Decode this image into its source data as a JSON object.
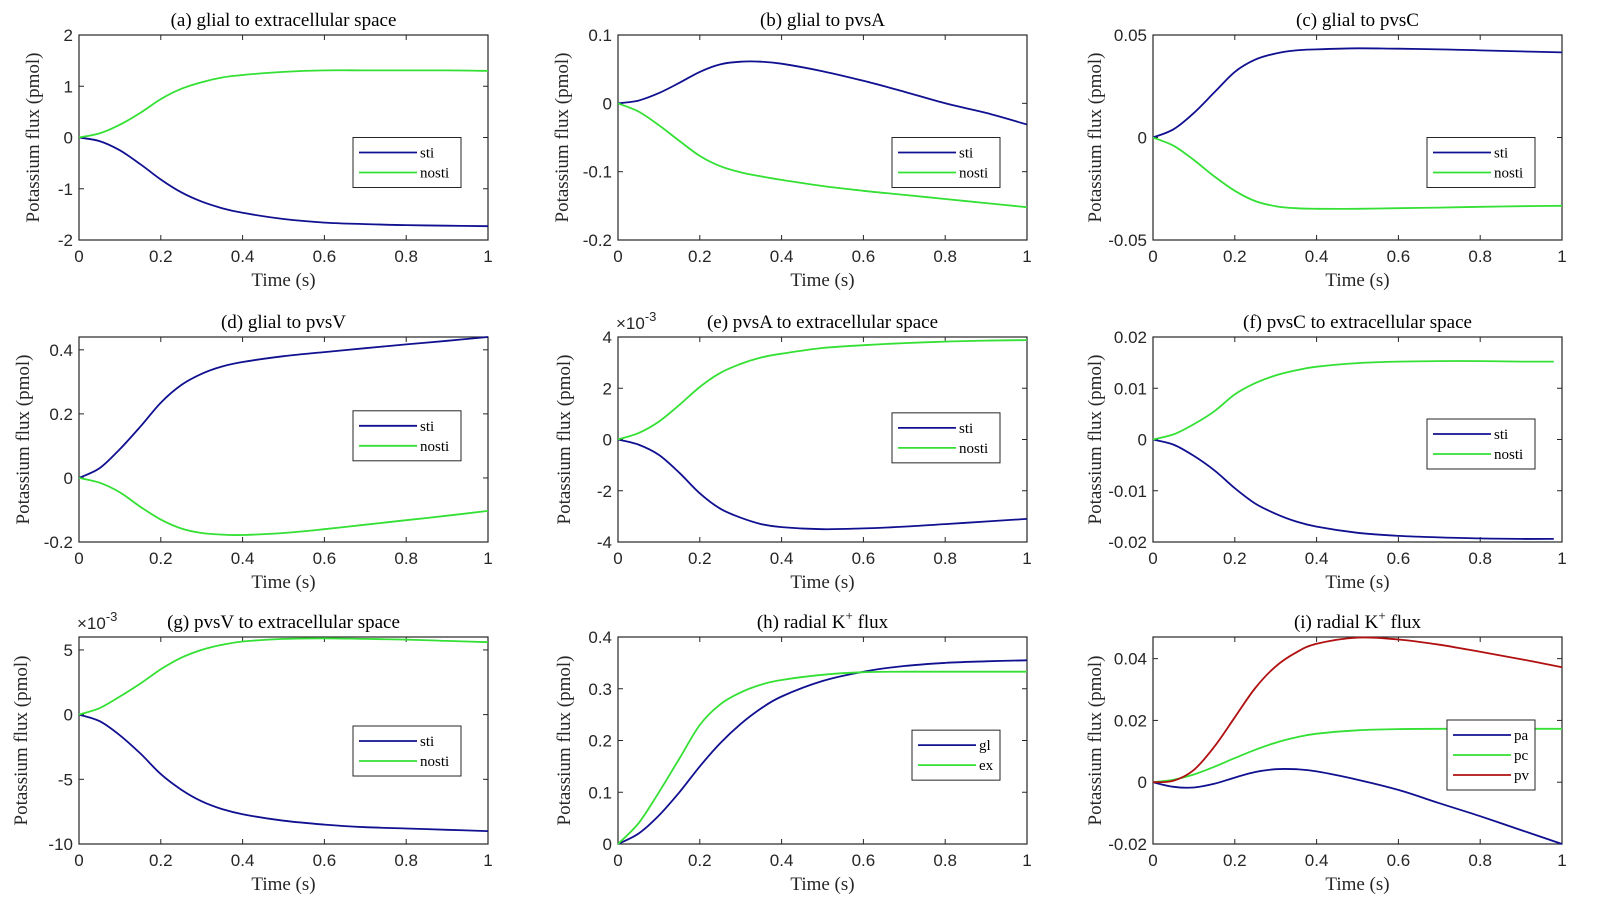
{
  "figure": {
    "colors": {
      "blue": "#101090",
      "green": "#33e033",
      "red": "#b01010",
      "axis": "#262626"
    }
  },
  "chart_data": [
    {
      "id": "a",
      "type": "line",
      "title": "(a) glial to extracellular space",
      "xlabel": "Time (s)",
      "ylabel": "Potassium flux (pmol)",
      "xlim": [
        0,
        1
      ],
      "ylim": [
        -2,
        2
      ],
      "xticks": [
        0,
        0.2,
        0.4,
        0.6,
        0.8,
        1
      ],
      "xtick_labels": [
        "0",
        "0.2",
        "0.4",
        "0.6",
        "0.8",
        "1"
      ],
      "yticks": [
        -2,
        -1,
        0,
        1,
        2
      ],
      "ytick_labels": [
        "-2",
        "-1",
        "0",
        "1",
        "2"
      ],
      "exponent_label": "",
      "legend": {
        "position": "center-right"
      },
      "x": [
        0,
        0.05,
        0.1,
        0.15,
        0.2,
        0.25,
        0.3,
        0.35,
        0.4,
        0.5,
        0.6,
        0.7,
        0.8,
        0.9,
        1.0
      ],
      "series": [
        {
          "name": "sti",
          "color": "blue",
          "values": [
            0,
            -0.07,
            -0.25,
            -0.52,
            -0.82,
            -1.07,
            -1.25,
            -1.38,
            -1.47,
            -1.59,
            -1.66,
            -1.69,
            -1.71,
            -1.72,
            -1.73
          ]
        },
        {
          "name": "nosti",
          "color": "green",
          "values": [
            0,
            0.08,
            0.25,
            0.48,
            0.75,
            0.95,
            1.08,
            1.17,
            1.22,
            1.28,
            1.31,
            1.31,
            1.31,
            1.31,
            1.3
          ]
        }
      ]
    },
    {
      "id": "b",
      "type": "line",
      "title": "(b) glial to pvsA",
      "xlabel": "Time (s)",
      "ylabel": "Potassium flux (pmol)",
      "xlim": [
        0,
        1
      ],
      "ylim": [
        -0.2,
        0.1
      ],
      "xticks": [
        0,
        0.2,
        0.4,
        0.6,
        0.8,
        1
      ],
      "xtick_labels": [
        "0",
        "0.2",
        "0.4",
        "0.6",
        "0.8",
        "1"
      ],
      "yticks": [
        -0.2,
        -0.1,
        0,
        0.1
      ],
      "ytick_labels": [
        "-0.2",
        "-0.1",
        "0",
        "0.1"
      ],
      "exponent_label": "",
      "legend": {
        "position": "center-right"
      },
      "x": [
        0,
        0.05,
        0.1,
        0.15,
        0.2,
        0.25,
        0.3,
        0.35,
        0.4,
        0.5,
        0.6,
        0.7,
        0.8,
        0.9,
        1.0
      ],
      "series": [
        {
          "name": "sti",
          "color": "blue",
          "values": [
            0,
            0.004,
            0.015,
            0.03,
            0.046,
            0.057,
            0.061,
            0.061,
            0.058,
            0.047,
            0.033,
            0.017,
            0.0,
            -0.014,
            -0.031
          ]
        },
        {
          "name": "nosti",
          "color": "green",
          "values": [
            0,
            -0.012,
            -0.032,
            -0.055,
            -0.077,
            -0.092,
            -0.101,
            -0.107,
            -0.112,
            -0.121,
            -0.128,
            -0.134,
            -0.14,
            -0.146,
            -0.152
          ]
        }
      ]
    },
    {
      "id": "c",
      "type": "line",
      "title": "(c) glial to pvsC",
      "xlabel": "Time (s)",
      "ylabel": "Potassium flux (pmol)",
      "xlim": [
        0,
        1
      ],
      "ylim": [
        -0.05,
        0.05
      ],
      "xticks": [
        0,
        0.2,
        0.4,
        0.6,
        0.8,
        1
      ],
      "xtick_labels": [
        "0",
        "0.2",
        "0.4",
        "0.6",
        "0.8",
        "1"
      ],
      "yticks": [
        -0.05,
        0,
        0.05
      ],
      "ytick_labels": [
        "-0.05",
        "0",
        "0.05"
      ],
      "exponent_label": "",
      "legend": {
        "position": "center-right"
      },
      "x": [
        0,
        0.05,
        0.1,
        0.15,
        0.2,
        0.25,
        0.3,
        0.35,
        0.4,
        0.5,
        0.6,
        0.7,
        0.8,
        0.9,
        1.0
      ],
      "series": [
        {
          "name": "sti",
          "color": "blue",
          "values": [
            0,
            0.004,
            0.012,
            0.022,
            0.032,
            0.038,
            0.041,
            0.0425,
            0.043,
            0.0435,
            0.0433,
            0.043,
            0.0425,
            0.042,
            0.0415
          ]
        },
        {
          "name": "nosti",
          "color": "green",
          "values": [
            0,
            -0.004,
            -0.011,
            -0.019,
            -0.026,
            -0.031,
            -0.0335,
            -0.0345,
            -0.0348,
            -0.0348,
            -0.0345,
            -0.0342,
            -0.0338,
            -0.0335,
            -0.0333
          ]
        }
      ]
    },
    {
      "id": "d",
      "type": "line",
      "title": "(d) glial to pvsV",
      "xlabel": "Time (s)",
      "ylabel": "Potassium flux (pmol)",
      "xlim": [
        0,
        1
      ],
      "ylim": [
        -0.2,
        0.44
      ],
      "xticks": [
        0,
        0.2,
        0.4,
        0.6,
        0.8,
        1
      ],
      "xtick_labels": [
        "0",
        "0.2",
        "0.4",
        "0.6",
        "0.8",
        "1"
      ],
      "yticks": [
        -0.2,
        0,
        0.2,
        0.4
      ],
      "ytick_labels": [
        "-0.2",
        "0",
        "0.2",
        "0.4"
      ],
      "exponent_label": "",
      "legend": {
        "position": "center-right"
      },
      "x": [
        0,
        0.05,
        0.1,
        0.15,
        0.2,
        0.25,
        0.3,
        0.35,
        0.4,
        0.5,
        0.6,
        0.7,
        0.8,
        0.9,
        1.0
      ],
      "series": [
        {
          "name": "sti",
          "color": "blue",
          "values": [
            0,
            0.03,
            0.09,
            0.16,
            0.235,
            0.29,
            0.325,
            0.348,
            0.362,
            0.38,
            0.393,
            0.405,
            0.417,
            0.428,
            0.44
          ]
        },
        {
          "name": "nosti",
          "color": "green",
          "values": [
            0,
            -0.015,
            -0.045,
            -0.09,
            -0.13,
            -0.158,
            -0.172,
            -0.177,
            -0.178,
            -0.172,
            -0.16,
            -0.146,
            -0.132,
            -0.118,
            -0.103
          ]
        }
      ]
    },
    {
      "id": "e",
      "type": "line",
      "title": "(e) pvsA to extracellular space",
      "xlabel": "Time (s)",
      "ylabel": "Potassium flux (pmol)",
      "xlim": [
        0,
        1
      ],
      "ylim": [
        -4,
        4
      ],
      "xticks": [
        0,
        0.2,
        0.4,
        0.6,
        0.8,
        1
      ],
      "xtick_labels": [
        "0",
        "0.2",
        "0.4",
        "0.6",
        "0.8",
        "1"
      ],
      "yticks": [
        -4,
        -2,
        0,
        2,
        4
      ],
      "ytick_labels": [
        "-4",
        "-2",
        "0",
        "2",
        "4"
      ],
      "exponent_label": "×10",
      "exponent_power": "-3",
      "legend": {
        "position": "center-right"
      },
      "x": [
        0,
        0.05,
        0.1,
        0.15,
        0.2,
        0.25,
        0.3,
        0.35,
        0.4,
        0.5,
        0.6,
        0.7,
        0.8,
        0.9,
        1.0
      ],
      "series": [
        {
          "name": "sti",
          "color": "blue",
          "values": [
            0,
            -0.2,
            -0.6,
            -1.3,
            -2.1,
            -2.7,
            -3.05,
            -3.3,
            -3.42,
            -3.5,
            -3.47,
            -3.4,
            -3.3,
            -3.2,
            -3.1
          ]
        },
        {
          "name": "nosti",
          "color": "green",
          "values": [
            0,
            0.25,
            0.7,
            1.35,
            2.05,
            2.6,
            2.95,
            3.2,
            3.35,
            3.57,
            3.68,
            3.76,
            3.82,
            3.86,
            3.88
          ]
        }
      ]
    },
    {
      "id": "f",
      "type": "line",
      "title": "(f) pvsC to extracellular space",
      "xlabel": "Time (s)",
      "ylabel": "Potassium flux (pmol)",
      "xlim": [
        0,
        1
      ],
      "ylim": [
        -0.02,
        0.02
      ],
      "xticks": [
        0,
        0.2,
        0.4,
        0.6,
        0.8,
        1
      ],
      "xtick_labels": [
        "0",
        "0.2",
        "0.4",
        "0.6",
        "0.8",
        "1"
      ],
      "yticks": [
        -0.02,
        -0.01,
        0,
        0.01,
        0.02
      ],
      "ytick_labels": [
        "-0.02",
        "-0.01",
        "0",
        "0.01",
        "0.02"
      ],
      "exponent_label": "",
      "legend": {
        "position": "center-right"
      },
      "x": [
        0,
        0.05,
        0.1,
        0.15,
        0.2,
        0.25,
        0.3,
        0.35,
        0.4,
        0.5,
        0.6,
        0.7,
        0.8,
        0.9,
        0.98
      ],
      "series": [
        {
          "name": "sti",
          "color": "blue",
          "values": [
            0,
            -0.001,
            -0.0032,
            -0.006,
            -0.0095,
            -0.0125,
            -0.0145,
            -0.016,
            -0.017,
            -0.0182,
            -0.0188,
            -0.0191,
            -0.0193,
            -0.0194,
            -0.0194
          ]
        },
        {
          "name": "nosti",
          "color": "green",
          "values": [
            0,
            0.001,
            0.003,
            0.0055,
            0.0088,
            0.011,
            0.0125,
            0.0135,
            0.0142,
            0.0149,
            0.0152,
            0.0153,
            0.0153,
            0.0152,
            0.0152
          ]
        }
      ]
    },
    {
      "id": "g",
      "type": "line",
      "title": "(g) pvsV to extracellular space",
      "xlabel": "Time (s)",
      "ylabel": "Potassium flux (pmol)",
      "xlim": [
        0,
        1
      ],
      "ylim": [
        -10,
        6
      ],
      "xticks": [
        0,
        0.2,
        0.4,
        0.6,
        0.8,
        1
      ],
      "xtick_labels": [
        "0",
        "0.2",
        "0.4",
        "0.6",
        "0.8",
        "1"
      ],
      "yticks": [
        -10,
        -5,
        0,
        5
      ],
      "ytick_labels": [
        "-10",
        "-5",
        "0",
        "5"
      ],
      "exponent_label": "×10",
      "exponent_power": "-3",
      "legend": {
        "position": "center-right"
      },
      "x": [
        0,
        0.05,
        0.1,
        0.15,
        0.2,
        0.25,
        0.3,
        0.35,
        0.4,
        0.5,
        0.6,
        0.7,
        0.8,
        0.9,
        1.0
      ],
      "series": [
        {
          "name": "sti",
          "color": "blue",
          "values": [
            0,
            -0.5,
            -1.6,
            -3.0,
            -4.6,
            -5.8,
            -6.7,
            -7.3,
            -7.7,
            -8.2,
            -8.5,
            -8.7,
            -8.8,
            -8.9,
            -9.0
          ]
        },
        {
          "name": "nosti",
          "color": "green",
          "values": [
            0,
            0.5,
            1.4,
            2.4,
            3.5,
            4.4,
            5.0,
            5.4,
            5.65,
            5.85,
            5.9,
            5.85,
            5.8,
            5.7,
            5.6
          ]
        }
      ]
    },
    {
      "id": "h",
      "type": "line",
      "title": "(h) radial K",
      "title_sup": "+",
      "title_suffix": " flux",
      "xlabel": "Time (s)",
      "ylabel": "Potassium flux (pmol)",
      "xlim": [
        0,
        1
      ],
      "ylim": [
        0,
        0.4
      ],
      "xticks": [
        0,
        0.2,
        0.4,
        0.6,
        0.8,
        1
      ],
      "xtick_labels": [
        "0",
        "0.2",
        "0.4",
        "0.6",
        "0.8",
        "1"
      ],
      "yticks": [
        0,
        0.1,
        0.2,
        0.3,
        0.4
      ],
      "ytick_labels": [
        "0",
        "0.1",
        "0.2",
        "0.3",
        "0.4"
      ],
      "exponent_label": "",
      "legend": {
        "position": "center-right"
      },
      "x": [
        0,
        0.05,
        0.1,
        0.15,
        0.2,
        0.25,
        0.3,
        0.35,
        0.4,
        0.5,
        0.6,
        0.7,
        0.8,
        0.9,
        1.0
      ],
      "series": [
        {
          "name": "gl",
          "color": "blue",
          "values": [
            0,
            0.02,
            0.055,
            0.1,
            0.15,
            0.195,
            0.232,
            0.262,
            0.285,
            0.315,
            0.333,
            0.344,
            0.35,
            0.353,
            0.355
          ]
        },
        {
          "name": "ex",
          "color": "green",
          "values": [
            0,
            0.04,
            0.1,
            0.165,
            0.23,
            0.27,
            0.293,
            0.308,
            0.317,
            0.327,
            0.332,
            0.333,
            0.333,
            0.333,
            0.333
          ]
        }
      ]
    },
    {
      "id": "i",
      "type": "line",
      "title": "(i) radial K",
      "title_sup": "+",
      "title_suffix": " flux",
      "xlabel": "Time (s)",
      "ylabel": "Potassium flux (pmol)",
      "xlim": [
        0,
        1
      ],
      "ylim": [
        -0.02,
        0.047
      ],
      "xticks": [
        0,
        0.2,
        0.4,
        0.6,
        0.8,
        1
      ],
      "xtick_labels": [
        "0",
        "0.2",
        "0.4",
        "0.6",
        "0.8",
        "1"
      ],
      "yticks": [
        -0.02,
        0,
        0.02,
        0.04
      ],
      "ytick_labels": [
        "-0.02",
        "0",
        "0.02",
        "0.04"
      ],
      "exponent_label": "",
      "legend": {
        "position": "center-right"
      },
      "x": [
        0,
        0.05,
        0.1,
        0.15,
        0.2,
        0.25,
        0.3,
        0.35,
        0.4,
        0.5,
        0.6,
        0.7,
        0.8,
        0.9,
        1.0
      ],
      "series": [
        {
          "name": "pa",
          "color": "blue",
          "values": [
            0,
            -0.0015,
            -0.0017,
            -0.0005,
            0.0015,
            0.0033,
            0.0042,
            0.0042,
            0.0035,
            0.0008,
            -0.0025,
            -0.0068,
            -0.011,
            -0.0155,
            -0.02
          ]
        },
        {
          "name": "pc",
          "color": "green",
          "values": [
            0,
            0.0008,
            0.0025,
            0.005,
            0.0078,
            0.0105,
            0.0128,
            0.0145,
            0.0157,
            0.0168,
            0.0172,
            0.0173,
            0.0173,
            0.0173,
            0.0173
          ]
        },
        {
          "name": "pv",
          "color": "red",
          "values": [
            0,
            0.0005,
            0.004,
            0.0115,
            0.021,
            0.0305,
            0.0375,
            0.042,
            0.0448,
            0.0468,
            0.0462,
            0.0445,
            0.0422,
            0.0398,
            0.0372
          ]
        }
      ]
    }
  ]
}
